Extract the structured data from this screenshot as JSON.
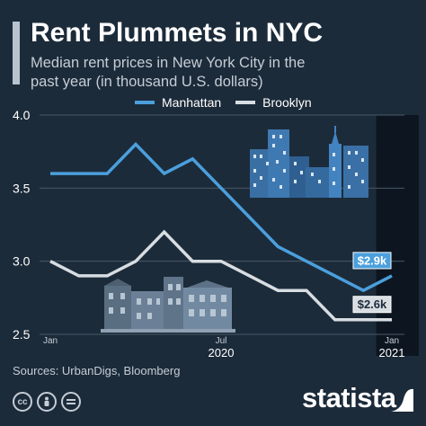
{
  "header": {
    "title": "Rent Plummets in NYC",
    "subtitle": "Median rent prices in New York City in the past year (in thousand U.S. dollars)"
  },
  "footer": {
    "source": "Sources: UrbanDigs, Bloomberg",
    "brand": "statista",
    "license_icons": [
      "cc",
      "person",
      "equals"
    ]
  },
  "colors": {
    "background": "#1c2b3a",
    "manhattan": "#4b9fdc",
    "brooklyn": "#d8dde2",
    "highlight": "#0d1620",
    "grid": "#4a5866"
  },
  "chart_data": {
    "type": "line",
    "x": [
      "2020-01",
      "2020-02",
      "2020-03",
      "2020-04",
      "2020-05",
      "2020-06",
      "2020-07",
      "2020-08",
      "2020-09",
      "2020-10",
      "2020-11",
      "2020-12",
      "2021-01"
    ],
    "series": [
      {
        "name": "Manhattan",
        "values": [
          3.6,
          3.6,
          3.6,
          3.8,
          3.6,
          3.7,
          3.5,
          3.3,
          3.1,
          3.0,
          2.9,
          2.8,
          2.9
        ]
      },
      {
        "name": "Brooklyn",
        "values": [
          3.0,
          2.9,
          2.9,
          3.0,
          3.2,
          3.0,
          3.0,
          2.9,
          2.8,
          2.8,
          2.6,
          2.6,
          2.6
        ]
      }
    ],
    "ylim": [
      2.5,
      4.0
    ],
    "yticks": [
      "2.5",
      "3.0",
      "3.5",
      "4.0"
    ],
    "xticks": [
      {
        "at": 0,
        "label": "Jan",
        "sub": ""
      },
      {
        "at": 6,
        "label": "Jul",
        "sub": "2020"
      },
      {
        "at": 12,
        "label": "Jan",
        "sub": "2021"
      }
    ],
    "annotations": [
      {
        "series": "Manhattan",
        "text": "$2.9k"
      },
      {
        "series": "Brooklyn",
        "text": "$2.6k"
      }
    ],
    "highlight_last": true,
    "grid": true,
    "legend": "top"
  }
}
